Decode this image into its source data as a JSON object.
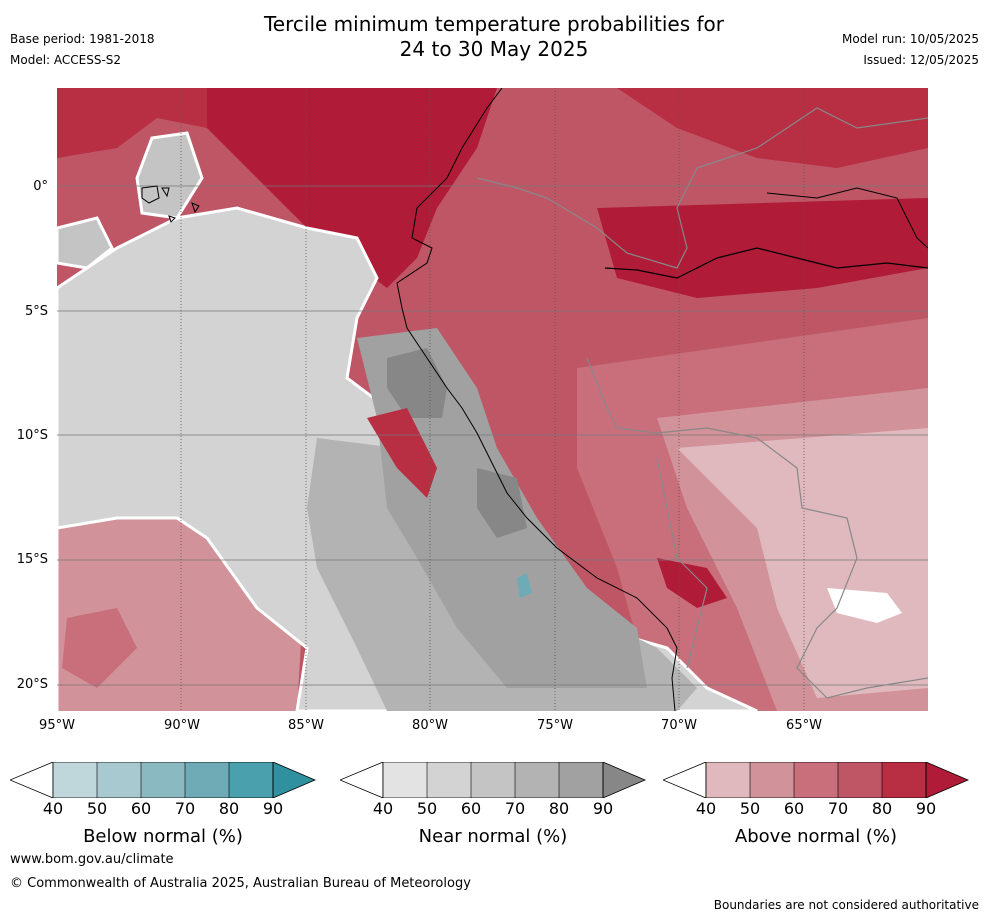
{
  "header": {
    "title_line1": "Tercile minimum temperature probabilities for",
    "title_line2": "24 to 30 May 2025",
    "base_period": "Base period: 1981-2018",
    "model": "Model: ACCESS-S2",
    "model_run": "Model run: 10/05/2025",
    "issued": "Issued: 12/05/2025"
  },
  "map": {
    "lat_labels": [
      "0°",
      "5°S",
      "10°S",
      "15°S",
      "20°S"
    ],
    "lon_labels": [
      "95°W",
      "90°W",
      "85°W",
      "80°W",
      "75°W",
      "70°W",
      "65°W"
    ]
  },
  "legends": [
    {
      "title": "Below normal (%)",
      "ticks": [
        "40",
        "50",
        "60",
        "70",
        "80",
        "90"
      ],
      "colors": [
        "#bfd6db",
        "#a7c9cf",
        "#8bb9c2",
        "#6eabb6",
        "#4aa0ad",
        "#2f91a0"
      ]
    },
    {
      "title": "Near normal (%)",
      "ticks": [
        "40",
        "50",
        "60",
        "70",
        "80",
        "90"
      ],
      "colors": [
        "#e3e3e3",
        "#d3d3d3",
        "#c4c4c4",
        "#b3b3b3",
        "#a1a1a1",
        "#878787"
      ]
    },
    {
      "title": "Above normal (%)",
      "ticks": [
        "40",
        "50",
        "60",
        "70",
        "80",
        "90"
      ],
      "colors": [
        "#e0b9bf",
        "#d29299",
        "#c86f7b",
        "#be5666",
        "#b82e43",
        "#b01b38"
      ]
    }
  ],
  "footer": {
    "url": "www.bom.gov.au/climate",
    "copyright": "© Commonwealth of Australia 2025, Australian Bureau of Meteorology",
    "disclaimer": "Boundaries are not considered authoritative"
  }
}
